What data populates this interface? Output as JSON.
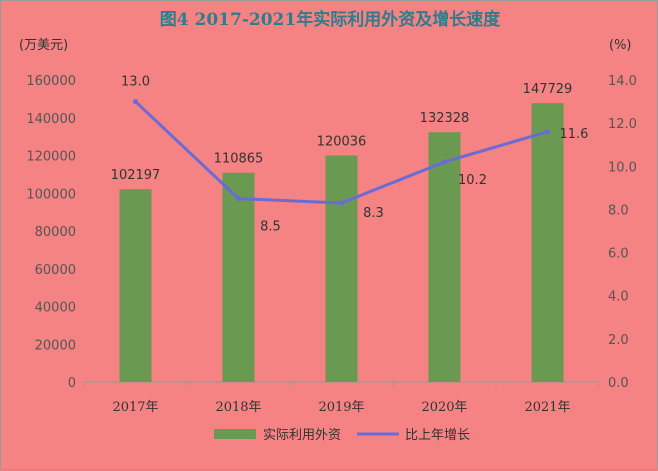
{
  "chart_data": {
    "type": "bar",
    "title": "图4  2017-2021年实际利用外资及增长速度",
    "left_unit": "(万美元)",
    "right_unit": "(%)",
    "categories": [
      "2017年",
      "2018年",
      "2019年",
      "2020年",
      "2021年"
    ],
    "series": [
      {
        "name": "实际利用外资",
        "type": "bar",
        "axis": "left",
        "color": "#6a9a52",
        "values": [
          102197,
          110865,
          120036,
          132328,
          147729
        ],
        "labels": [
          "102197",
          "110865",
          "120036",
          "132328",
          "147729"
        ]
      },
      {
        "name": "比上年增长",
        "type": "line",
        "axis": "right",
        "color": "#6b6bd6",
        "values": [
          13.0,
          8.5,
          8.3,
          10.2,
          11.6
        ],
        "labels": [
          "13.0",
          "8.5",
          "8.3",
          "10.2",
          "11.6"
        ]
      }
    ],
    "ylim_left": [
      0,
      160000
    ],
    "yticks_left": [
      "0",
      "20000",
      "40000",
      "60000",
      "80000",
      "100000",
      "120000",
      "140000",
      "160000"
    ],
    "ylim_right": [
      0,
      14
    ],
    "yticks_right": [
      "0.0",
      "2.0",
      "4.0",
      "6.0",
      "8.0",
      "10.0",
      "12.0",
      "14.0"
    ],
    "legend_position": "bottom",
    "grid": false
  }
}
